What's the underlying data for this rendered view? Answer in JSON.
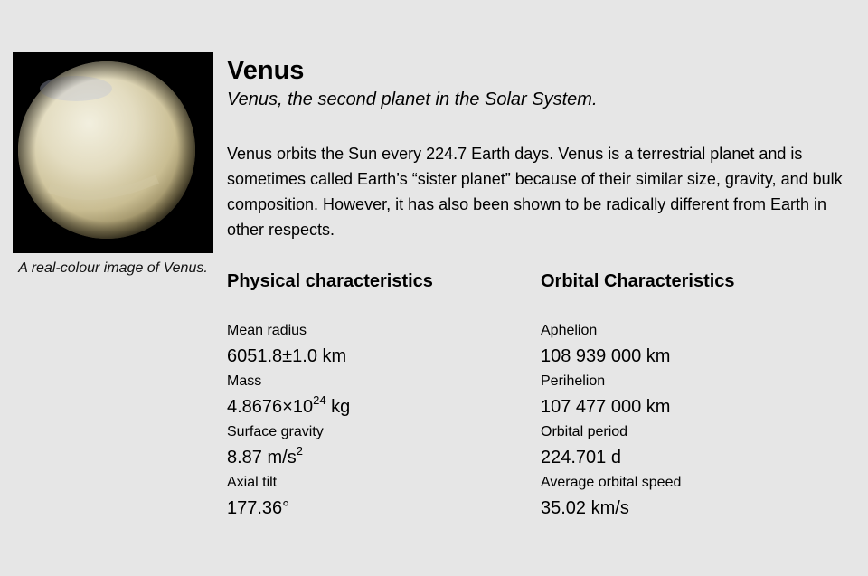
{
  "figure": {
    "image_alt": "Venus",
    "caption": "A real-colour image of Venus."
  },
  "title": "Venus",
  "subtitle": "Venus, the second planet in the Solar System.",
  "description": "Venus orbits the Sun every 224.7 Earth days. Venus is a terrestrial planet and is sometimes called Earth’s “sister planet” because of their similar size, gravity, and bulk composition. However, it has also been shown to be radically different from Earth in other respects.",
  "physical": {
    "heading": "Physical characteristics",
    "stats": [
      {
        "label": "Mean radius",
        "value": "6051.8±1.0 km"
      },
      {
        "label": "Mass",
        "value_base": "4.8676×10",
        "value_sup": "24",
        "value_unit": " kg"
      },
      {
        "label": "Surface gravity",
        "value_base": "8.87 m/s",
        "value_sup": "2",
        "value_unit": ""
      },
      {
        "label": "Axial tilt",
        "value": "177.36°"
      }
    ]
  },
  "orbital": {
    "heading": "Orbital Characteristics",
    "stats": [
      {
        "label": "Aphelion",
        "value": "108 939 000 km"
      },
      {
        "label": "Perihelion",
        "value": "107 477 000 km"
      },
      {
        "label": "Orbital period",
        "value": "224.701 d"
      },
      {
        "label": "Average orbital speed",
        "value": "35.02 km/s"
      }
    ]
  }
}
